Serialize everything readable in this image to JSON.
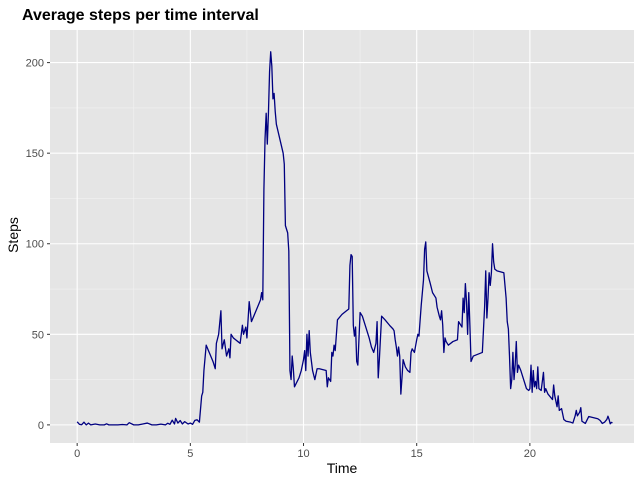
{
  "chart_data": {
    "type": "line",
    "title": "Average steps per time interval",
    "xlabel": "Time",
    "ylabel": "Steps",
    "xlim": [
      -1.2,
      24.6
    ],
    "ylim": [
      -10,
      218
    ],
    "xticks": [
      0,
      5,
      10,
      15,
      20
    ],
    "yticks": [
      0,
      50,
      100,
      150,
      200
    ],
    "grid": true,
    "colors": {
      "panel": "#e5e5e5",
      "grid_major": "#ffffff",
      "grid_minor": "#f2f2f2",
      "line": "#000080",
      "tick": "#333333"
    },
    "series": [
      {
        "values": [
          [
            0.0,
            1.7
          ],
          [
            0.1,
            0.3
          ],
          [
            0.2,
            0.1
          ],
          [
            0.3,
            1.5
          ],
          [
            0.4,
            0.0
          ],
          [
            0.5,
            1.0
          ],
          [
            0.6,
            0.0
          ],
          [
            0.8,
            0.5
          ],
          [
            1.0,
            0.0
          ],
          [
            1.2,
            0.0
          ],
          [
            1.3,
            0.6
          ],
          [
            1.4,
            0.0
          ],
          [
            1.6,
            0.0
          ],
          [
            1.8,
            0.0
          ],
          [
            2.0,
            0.2
          ],
          [
            2.2,
            0.0
          ],
          [
            2.3,
            1.2
          ],
          [
            2.5,
            0.0
          ],
          [
            2.7,
            0.0
          ],
          [
            2.9,
            0.5
          ],
          [
            3.1,
            1.0
          ],
          [
            3.3,
            0.0
          ],
          [
            3.5,
            0.0
          ],
          [
            3.7,
            0.4
          ],
          [
            3.9,
            0.0
          ],
          [
            4.0,
            0.9
          ],
          [
            4.1,
            0.3
          ],
          [
            4.2,
            2.6
          ],
          [
            4.3,
            0.5
          ],
          [
            4.35,
            3.6
          ],
          [
            4.45,
            1.0
          ],
          [
            4.55,
            2.4
          ],
          [
            4.65,
            0.5
          ],
          [
            4.75,
            1.8
          ],
          [
            4.9,
            0.5
          ],
          [
            5.0,
            1.0
          ],
          [
            5.1,
            0.3
          ],
          [
            5.2,
            2.5
          ],
          [
            5.3,
            2.8
          ],
          [
            5.4,
            1.5
          ],
          [
            5.5,
            16.0
          ],
          [
            5.55,
            18.0
          ],
          [
            5.6,
            30.0
          ],
          [
            5.7,
            44.0
          ],
          [
            5.8,
            41.0
          ],
          [
            5.9,
            38.0
          ],
          [
            6.0,
            35.0
          ],
          [
            6.1,
            31.0
          ],
          [
            6.15,
            45.0
          ],
          [
            6.25,
            50.0
          ],
          [
            6.35,
            63.0
          ],
          [
            6.4,
            42.0
          ],
          [
            6.5,
            47.0
          ],
          [
            6.6,
            38.0
          ],
          [
            6.7,
            42.0
          ],
          [
            6.75,
            37.0
          ],
          [
            6.8,
            50.0
          ],
          [
            6.9,
            48.0
          ],
          [
            7.0,
            47.0
          ],
          [
            7.1,
            46.0
          ],
          [
            7.2,
            45.0
          ],
          [
            7.3,
            55.0
          ],
          [
            7.35,
            50.0
          ],
          [
            7.45,
            54.0
          ],
          [
            7.5,
            48.0
          ],
          [
            7.6,
            68.0
          ],
          [
            7.7,
            57.0
          ],
          [
            8.0,
            66.0
          ],
          [
            8.1,
            69.0
          ],
          [
            8.15,
            73.0
          ],
          [
            8.2,
            69.0
          ],
          [
            8.25,
            130.0
          ],
          [
            8.3,
            158.0
          ],
          [
            8.35,
            172.0
          ],
          [
            8.4,
            155.0
          ],
          [
            8.45,
            172.0
          ],
          [
            8.5,
            195.0
          ],
          [
            8.55,
            206.0
          ],
          [
            8.6,
            198.0
          ],
          [
            8.65,
            180.0
          ],
          [
            8.7,
            183.0
          ],
          [
            8.75,
            173.0
          ],
          [
            8.8,
            166.0
          ],
          [
            9.1,
            150.0
          ],
          [
            9.15,
            144.0
          ],
          [
            9.2,
            110.0
          ],
          [
            9.3,
            106.0
          ],
          [
            9.35,
            96.0
          ],
          [
            9.4,
            30.0
          ],
          [
            9.45,
            25.0
          ],
          [
            9.5,
            38.0
          ],
          [
            9.55,
            31.0
          ],
          [
            9.6,
            21.0
          ],
          [
            9.8,
            26.0
          ],
          [
            9.9,
            30.0
          ],
          [
            10.0,
            36.0
          ],
          [
            10.05,
            41.0
          ],
          [
            10.1,
            30.0
          ],
          [
            10.15,
            50.0
          ],
          [
            10.2,
            38.0
          ],
          [
            10.25,
            52.0
          ],
          [
            10.3,
            40.0
          ],
          [
            10.35,
            35.0
          ],
          [
            10.4,
            30.0
          ],
          [
            10.5,
            25.0
          ],
          [
            10.6,
            31.0
          ],
          [
            10.7,
            31.0
          ],
          [
            11.0,
            30.0
          ],
          [
            11.05,
            21.0
          ],
          [
            11.1,
            26.0
          ],
          [
            11.2,
            24.0
          ],
          [
            11.25,
            40.0
          ],
          [
            11.3,
            38.0
          ],
          [
            11.35,
            44.0
          ],
          [
            11.4,
            41.0
          ],
          [
            11.5,
            58.0
          ],
          [
            11.7,
            61.0
          ],
          [
            11.9,
            63.0
          ],
          [
            12.0,
            64.0
          ],
          [
            12.05,
            88.0
          ],
          [
            12.1,
            94.0
          ],
          [
            12.15,
            93.0
          ],
          [
            12.2,
            55.0
          ],
          [
            12.25,
            49.0
          ],
          [
            12.3,
            54.0
          ],
          [
            12.35,
            35.0
          ],
          [
            12.4,
            33.0
          ],
          [
            12.5,
            62.0
          ],
          [
            12.6,
            60.0
          ],
          [
            12.7,
            56.0
          ],
          [
            12.8,
            52.0
          ],
          [
            12.9,
            48.0
          ],
          [
            13.0,
            43.0
          ],
          [
            13.1,
            40.0
          ],
          [
            13.2,
            45.0
          ],
          [
            13.25,
            57.0
          ],
          [
            13.3,
            26.0
          ],
          [
            13.35,
            36.0
          ],
          [
            13.45,
            60.0
          ],
          [
            13.6,
            58.0
          ],
          [
            13.8,
            55.0
          ],
          [
            13.95,
            53.0
          ],
          [
            14.0,
            52.0
          ],
          [
            14.05,
            47.0
          ],
          [
            14.1,
            43.0
          ],
          [
            14.15,
            38.0
          ],
          [
            14.2,
            43.0
          ],
          [
            14.25,
            38.0
          ],
          [
            14.3,
            17.0
          ],
          [
            14.35,
            26.0
          ],
          [
            14.4,
            36.0
          ],
          [
            14.5,
            32.0
          ],
          [
            14.6,
            30.0
          ],
          [
            14.7,
            29.0
          ],
          [
            14.75,
            40.0
          ],
          [
            14.8,
            42.0
          ],
          [
            14.9,
            40.0
          ],
          [
            15.0,
            47.0
          ],
          [
            15.05,
            50.0
          ],
          [
            15.1,
            49.0
          ],
          [
            15.2,
            66.0
          ],
          [
            15.3,
            80.0
          ],
          [
            15.35,
            97.0
          ],
          [
            15.4,
            101.0
          ],
          [
            15.45,
            85.0
          ],
          [
            15.6,
            78.0
          ],
          [
            15.7,
            73.0
          ],
          [
            15.85,
            70.0
          ],
          [
            15.9,
            65.0
          ],
          [
            16.0,
            60.0
          ],
          [
            16.05,
            58.0
          ],
          [
            16.1,
            63.0
          ],
          [
            16.15,
            55.0
          ],
          [
            16.2,
            40.0
          ],
          [
            16.25,
            48.0
          ],
          [
            16.3,
            46.0
          ],
          [
            16.4,
            44.0
          ],
          [
            16.6,
            46.0
          ],
          [
            16.8,
            47.0
          ],
          [
            16.85,
            57.0
          ],
          [
            17.0,
            54.0
          ],
          [
            17.05,
            70.0
          ],
          [
            17.1,
            62.0
          ],
          [
            17.15,
            78.0
          ],
          [
            17.2,
            68.0
          ],
          [
            17.25,
            50.0
          ],
          [
            17.3,
            73.0
          ],
          [
            17.35,
            55.0
          ],
          [
            17.4,
            35.0
          ],
          [
            17.5,
            38.0
          ],
          [
            17.9,
            40.0
          ],
          [
            18.0,
            65.0
          ],
          [
            18.05,
            85.0
          ],
          [
            18.1,
            59.0
          ],
          [
            18.15,
            70.0
          ],
          [
            18.2,
            84.0
          ],
          [
            18.25,
            77.0
          ],
          [
            18.3,
            84.0
          ],
          [
            18.35,
            100.0
          ],
          [
            18.4,
            90.0
          ],
          [
            18.45,
            86.0
          ],
          [
            18.55,
            85.0
          ],
          [
            18.85,
            84.0
          ],
          [
            18.95,
            70.0
          ],
          [
            19.0,
            57.0
          ],
          [
            19.05,
            53.0
          ],
          [
            19.1,
            38.0
          ],
          [
            19.15,
            20.0
          ],
          [
            19.2,
            25.0
          ],
          [
            19.25,
            40.0
          ],
          [
            19.3,
            25.0
          ],
          [
            19.35,
            33.0
          ],
          [
            19.4,
            46.0
          ],
          [
            19.45,
            29.0
          ],
          [
            19.5,
            33.0
          ],
          [
            19.6,
            30.0
          ],
          [
            19.7,
            26.0
          ],
          [
            19.85,
            20.0
          ],
          [
            19.95,
            19.0
          ],
          [
            20.0,
            20.0
          ],
          [
            20.05,
            33.0
          ],
          [
            20.1,
            18.0
          ],
          [
            20.15,
            30.0
          ],
          [
            20.2,
            21.0
          ],
          [
            20.25,
            24.0
          ],
          [
            20.3,
            20.0
          ],
          [
            20.35,
            32.0
          ],
          [
            20.4,
            20.0
          ],
          [
            20.5,
            19.0
          ],
          [
            20.6,
            29.0
          ],
          [
            20.65,
            18.0
          ],
          [
            20.7,
            20.0
          ],
          [
            20.8,
            17.0
          ],
          [
            21.0,
            14.0
          ],
          [
            21.05,
            22.0
          ],
          [
            21.1,
            16.0
          ],
          [
            21.2,
            10.0
          ],
          [
            21.25,
            16.0
          ],
          [
            21.3,
            8.0
          ],
          [
            21.4,
            9.0
          ],
          [
            21.5,
            3.0
          ],
          [
            21.6,
            2.0
          ],
          [
            21.8,
            1.5
          ],
          [
            21.9,
            1.0
          ],
          [
            22.0,
            5.0
          ],
          [
            22.05,
            8.0
          ],
          [
            22.1,
            5.0
          ],
          [
            22.2,
            7.0
          ],
          [
            22.25,
            9.5
          ],
          [
            22.3,
            2.0
          ],
          [
            22.45,
            0.8
          ],
          [
            22.6,
            4.6
          ],
          [
            22.8,
            4.0
          ],
          [
            23.0,
            3.4
          ],
          [
            23.1,
            2.5
          ],
          [
            23.2,
            0.8
          ],
          [
            23.3,
            1.5
          ],
          [
            23.4,
            3.0
          ],
          [
            23.45,
            4.8
          ],
          [
            23.5,
            3.0
          ],
          [
            23.55,
            0.6
          ],
          [
            23.6,
            1.4
          ],
          [
            23.65,
            1.2
          ]
        ]
      }
    ]
  }
}
